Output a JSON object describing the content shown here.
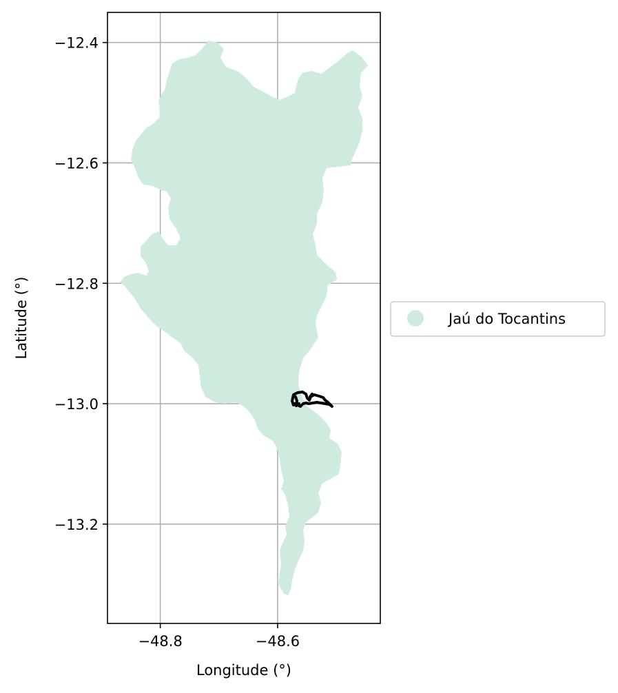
{
  "chart_data": {
    "type": "map",
    "xlabel": "Longitude (°)",
    "ylabel": "Latitude (°)",
    "xlim": [
      -48.89,
      -48.425
    ],
    "ylim": [
      -13.365,
      -12.35
    ],
    "xticks": [
      {
        "value": -48.8,
        "label": "−48.8"
      },
      {
        "value": -48.6,
        "label": "−48.6"
      }
    ],
    "yticks": [
      {
        "value": -12.4,
        "label": "−12.4"
      },
      {
        "value": -12.6,
        "label": "−12.6"
      },
      {
        "value": -12.8,
        "label": "−12.8"
      },
      {
        "value": -13.0,
        "label": "−13.0"
      },
      {
        "value": -13.2,
        "label": "−13.2"
      }
    ],
    "grid": true,
    "legend": {
      "placement": "outside-right",
      "entries": [
        {
          "label": "Jaú do Tocantins",
          "color": "#cfebdd"
        }
      ]
    },
    "region_color": "#cfebdd",
    "track_color": "#000000"
  }
}
